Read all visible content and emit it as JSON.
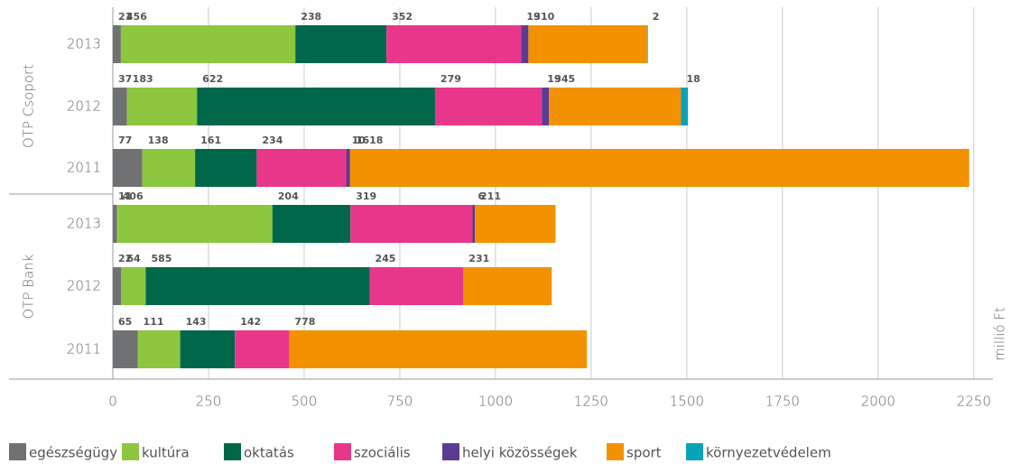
{
  "chart_data": {
    "type": "stacked-barh",
    "groups": [
      {
        "name": "OTP Csoport",
        "categories": [
          "2013",
          "2012",
          "2011"
        ]
      },
      {
        "name": "OTP Bank",
        "categories": [
          "2013",
          "2012",
          "2011"
        ]
      }
    ],
    "series": [
      {
        "name": "egészségügy",
        "color": "#707173",
        "values": [
          21,
          37,
          77,
          11,
          22,
          65
        ]
      },
      {
        "name": "kultúra",
        "color": "#8dc63f",
        "values": [
          456,
          183,
          138,
          406,
          64,
          111
        ]
      },
      {
        "name": "oktatás",
        "color": "#00674b",
        "values": [
          238,
          622,
          161,
          204,
          585,
          143
        ]
      },
      {
        "name": "szociális",
        "color": "#e8378b",
        "values": [
          352,
          279,
          234,
          319,
          245,
          142
        ]
      },
      {
        "name": "helyi közösségek",
        "color": "#5c3b94",
        "values": [
          19,
          19,
          10,
          6,
          null,
          null
        ]
      },
      {
        "name": "sport",
        "color": "#f39200",
        "values": [
          310,
          345,
          1618,
          211,
          231,
          778
        ]
      },
      {
        "name": "környezetvédelem",
        "color": "#0aa2b8",
        "values": [
          2,
          18,
          null,
          null,
          null,
          null
        ]
      }
    ],
    "xlabel": "millió Ft",
    "xlim": [
      0,
      2300
    ],
    "xticks": [
      0,
      250,
      500,
      750,
      1000,
      1250,
      1500,
      1750,
      2000,
      2250
    ],
    "grid": true
  }
}
